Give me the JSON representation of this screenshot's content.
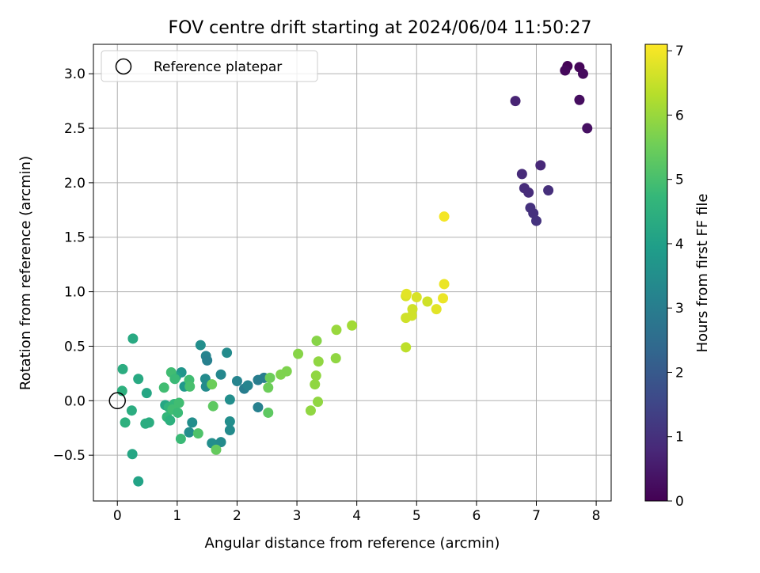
{
  "chart_data": {
    "type": "scatter",
    "title": "FOV centre drift starting at 2024/06/04 11:50:27",
    "xlabel": "Angular distance from reference (arcmin)",
    "ylabel": "Rotation from reference (arcmin)",
    "xlim": [
      -0.4,
      8.25
    ],
    "ylim": [
      -0.92,
      3.27
    ],
    "xticks": [
      0,
      1,
      2,
      3,
      4,
      5,
      6,
      7,
      8
    ],
    "yticks": [
      -0.5,
      0.0,
      0.5,
      1.0,
      1.5,
      2.0,
      2.5,
      3.0
    ],
    "xtick_labels": [
      "0",
      "1",
      "2",
      "3",
      "4",
      "5",
      "6",
      "7",
      "8"
    ],
    "ytick_labels": [
      "−0.5",
      "0.0",
      "0.5",
      "1.0",
      "1.5",
      "2.0",
      "2.5",
      "3.0"
    ],
    "grid": true,
    "legend": {
      "placement": "top-left",
      "entries": [
        "Reference platepar"
      ]
    },
    "reference_point": {
      "x": 0,
      "y": 0
    },
    "colorbar": {
      "label": "Hours from first FF file",
      "min": 0,
      "max": 7.1,
      "ticks": [
        0,
        1,
        2,
        3,
        4,
        5,
        6,
        7
      ],
      "tick_labels": [
        "0",
        "1",
        "2",
        "3",
        "4",
        "5",
        "6",
        "7"
      ],
      "colormap": "viridis",
      "stops": [
        "#440154",
        "#482878",
        "#3e4989",
        "#31688e",
        "#26828e",
        "#1f9e89",
        "#35b779",
        "#6ece58",
        "#b5de2b",
        "#fde725"
      ]
    },
    "points": [
      {
        "x": 7.52,
        "y": 3.07,
        "c": 0.05
      },
      {
        "x": 7.72,
        "y": 3.06,
        "c": 0.1
      },
      {
        "x": 7.48,
        "y": 3.03,
        "c": 0.15
      },
      {
        "x": 7.78,
        "y": 3.0,
        "c": 0.2
      },
      {
        "x": 7.72,
        "y": 2.76,
        "c": 0.25
      },
      {
        "x": 7.85,
        "y": 2.5,
        "c": 0.3
      },
      {
        "x": 6.65,
        "y": 2.75,
        "c": 0.7
      },
      {
        "x": 7.07,
        "y": 2.16,
        "c": 0.8
      },
      {
        "x": 6.76,
        "y": 2.08,
        "c": 0.85
      },
      {
        "x": 6.8,
        "y": 1.95,
        "c": 0.9
      },
      {
        "x": 6.87,
        "y": 1.91,
        "c": 0.9
      },
      {
        "x": 7.2,
        "y": 1.93,
        "c": 0.95
      },
      {
        "x": 6.9,
        "y": 1.77,
        "c": 1.0
      },
      {
        "x": 6.95,
        "y": 1.72,
        "c": 1.0
      },
      {
        "x": 7.0,
        "y": 1.65,
        "c": 1.05
      },
      {
        "x": 1.48,
        "y": 0.41,
        "c": 3.2
      },
      {
        "x": 1.5,
        "y": 0.37,
        "c": 3.1
      },
      {
        "x": 1.83,
        "y": 0.44,
        "c": 3.4
      },
      {
        "x": 1.39,
        "y": 0.51,
        "c": 3.5
      },
      {
        "x": 1.73,
        "y": 0.24,
        "c": 3.3
      },
      {
        "x": 2.0,
        "y": 0.18,
        "c": 3.2
      },
      {
        "x": 2.12,
        "y": 0.11,
        "c": 3.0
      },
      {
        "x": 2.18,
        "y": 0.14,
        "c": 3.2
      },
      {
        "x": 2.35,
        "y": 0.19,
        "c": 3.0
      },
      {
        "x": 2.45,
        "y": 0.21,
        "c": 3.0
      },
      {
        "x": 1.47,
        "y": 0.2,
        "c": 3.4
      },
      {
        "x": 1.48,
        "y": 0.13,
        "c": 3.4
      },
      {
        "x": 2.35,
        "y": -0.06,
        "c": 3.1
      },
      {
        "x": 1.88,
        "y": 0.01,
        "c": 3.5
      },
      {
        "x": 1.88,
        "y": -0.19,
        "c": 3.5
      },
      {
        "x": 1.88,
        "y": -0.27,
        "c": 3.4
      },
      {
        "x": 1.58,
        "y": -0.39,
        "c": 3.5
      },
      {
        "x": 1.73,
        "y": -0.38,
        "c": 3.4
      },
      {
        "x": 1.25,
        "y": -0.2,
        "c": 3.5
      },
      {
        "x": 1.2,
        "y": -0.29,
        "c": 3.5
      },
      {
        "x": 1.07,
        "y": 0.26,
        "c": 3.7
      },
      {
        "x": 1.12,
        "y": 0.13,
        "c": 3.8
      },
      {
        "x": 0.98,
        "y": 0.22,
        "c": 4.0
      },
      {
        "x": 0.26,
        "y": 0.57,
        "c": 4.3
      },
      {
        "x": 0.09,
        "y": 0.29,
        "c": 4.4
      },
      {
        "x": 0.35,
        "y": 0.2,
        "c": 4.3
      },
      {
        "x": 0.49,
        "y": 0.07,
        "c": 4.2
      },
      {
        "x": 0.08,
        "y": 0.09,
        "c": 4.5
      },
      {
        "x": 0.24,
        "y": -0.09,
        "c": 4.4
      },
      {
        "x": 0.13,
        "y": -0.2,
        "c": 4.5
      },
      {
        "x": 0.47,
        "y": -0.21,
        "c": 4.4
      },
      {
        "x": 0.53,
        "y": -0.2,
        "c": 4.4
      },
      {
        "x": 0.25,
        "y": -0.49,
        "c": 4.2
      },
      {
        "x": 0.35,
        "y": -0.74,
        "c": 4.1
      },
      {
        "x": 0.8,
        "y": -0.04,
        "c": 4.2
      },
      {
        "x": 0.86,
        "y": -0.06,
        "c": 4.6
      },
      {
        "x": 0.83,
        "y": -0.15,
        "c": 4.7
      },
      {
        "x": 0.88,
        "y": -0.18,
        "c": 4.5
      },
      {
        "x": 0.95,
        "y": -0.03,
        "c": 4.7
      },
      {
        "x": 1.03,
        "y": -0.02,
        "c": 4.9
      },
      {
        "x": 0.92,
        "y": -0.08,
        "c": 4.9
      },
      {
        "x": 1.01,
        "y": -0.11,
        "c": 4.8
      },
      {
        "x": 0.9,
        "y": 0.26,
        "c": 4.9
      },
      {
        "x": 0.96,
        "y": 0.2,
        "c": 4.8
      },
      {
        "x": 0.78,
        "y": 0.12,
        "c": 4.9
      },
      {
        "x": 1.06,
        "y": -0.35,
        "c": 4.8
      },
      {
        "x": 1.2,
        "y": 0.19,
        "c": 4.9
      },
      {
        "x": 1.21,
        "y": 0.13,
        "c": 5.0
      },
      {
        "x": 1.35,
        "y": -0.3,
        "c": 5.1
      },
      {
        "x": 1.6,
        "y": -0.05,
        "c": 5.3
      },
      {
        "x": 1.58,
        "y": 0.15,
        "c": 5.5
      },
      {
        "x": 1.65,
        "y": -0.45,
        "c": 5.4
      },
      {
        "x": 2.52,
        "y": -0.11,
        "c": 5.3
      },
      {
        "x": 2.55,
        "y": 0.21,
        "c": 5.5
      },
      {
        "x": 2.52,
        "y": 0.12,
        "c": 5.5
      },
      {
        "x": 2.73,
        "y": 0.24,
        "c": 5.7
      },
      {
        "x": 2.83,
        "y": 0.27,
        "c": 5.7
      },
      {
        "x": 3.02,
        "y": 0.43,
        "c": 5.8
      },
      {
        "x": 3.33,
        "y": 0.55,
        "c": 5.8
      },
      {
        "x": 3.36,
        "y": 0.36,
        "c": 5.9
      },
      {
        "x": 3.32,
        "y": 0.23,
        "c": 5.9
      },
      {
        "x": 3.3,
        "y": 0.15,
        "c": 5.9
      },
      {
        "x": 3.35,
        "y": -0.01,
        "c": 5.9
      },
      {
        "x": 3.23,
        "y": -0.09,
        "c": 5.9
      },
      {
        "x": 3.65,
        "y": 0.39,
        "c": 5.9
      },
      {
        "x": 3.66,
        "y": 0.65,
        "c": 6.0
      },
      {
        "x": 3.92,
        "y": 0.69,
        "c": 6.1
      },
      {
        "x": 4.82,
        "y": 0.49,
        "c": 6.4
      },
      {
        "x": 4.82,
        "y": 0.76,
        "c": 6.6
      },
      {
        "x": 4.82,
        "y": 0.96,
        "c": 6.7
      },
      {
        "x": 4.83,
        "y": 0.98,
        "c": 6.8
      },
      {
        "x": 4.92,
        "y": 0.78,
        "c": 6.6
      },
      {
        "x": 4.93,
        "y": 0.84,
        "c": 6.6
      },
      {
        "x": 5.0,
        "y": 0.95,
        "c": 6.7
      },
      {
        "x": 5.18,
        "y": 0.91,
        "c": 6.6
      },
      {
        "x": 5.33,
        "y": 0.84,
        "c": 6.8
      },
      {
        "x": 5.44,
        "y": 0.94,
        "c": 6.9
      },
      {
        "x": 5.46,
        "y": 1.07,
        "c": 6.9
      },
      {
        "x": 5.46,
        "y": 1.69,
        "c": 7.0
      }
    ]
  }
}
